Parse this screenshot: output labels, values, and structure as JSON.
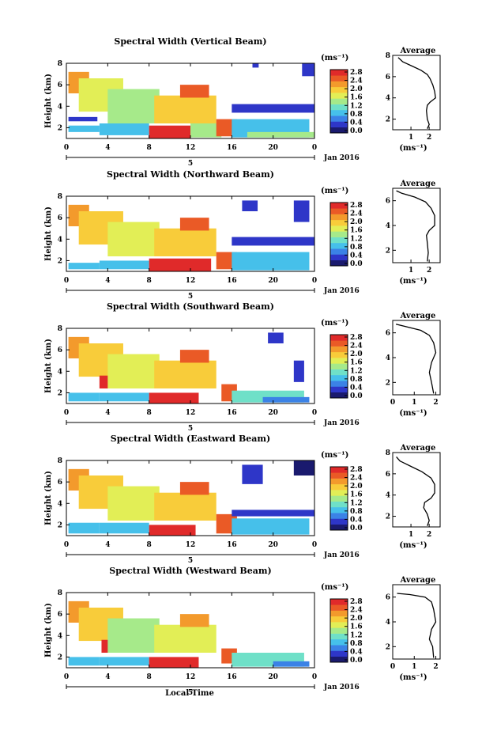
{
  "figure": {
    "xlabel": "Local Time",
    "date_label": "Jan 2016",
    "day_label": "5",
    "ylabel": "Height (km)",
    "unit_label": "(ms⁻¹)",
    "avg_title": "Average",
    "avg_xlabel": "(ms⁻¹)"
  },
  "colormap": [
    "#1a1a6e",
    "#2e36c8",
    "#3b82e6",
    "#46c0ea",
    "#6fe0c8",
    "#a6ea8a",
    "#e2ee56",
    "#f8cc3a",
    "#f39a2c",
    "#ea5a26",
    "#e02a2a"
  ],
  "chart_data": [
    {
      "type": "heatmap",
      "title": "Spectral Width (Vertical Beam)",
      "x_ticks": [
        "0",
        "4",
        "8",
        "12",
        "16",
        "20",
        "0"
      ],
      "y_ticks": [
        "2",
        "4",
        "6",
        "8"
      ],
      "xlim": [
        0,
        24
      ],
      "ylim": [
        1,
        8
      ],
      "colorbar_ticks": [
        "0.0",
        "0.4",
        "0.8",
        "1.2",
        "1.6",
        "2.0",
        "2.4",
        "2.8"
      ],
      "colorbar_range": [
        0,
        2.8
      ],
      "regions": [
        {
          "x": [
            0.2,
            3.2
          ],
          "y": [
            1.6,
            2.2
          ],
          "v": 0.9
        },
        {
          "x": [
            0.2,
            3.0
          ],
          "y": [
            2.6,
            3.0
          ],
          "v": 0.3
        },
        {
          "x": [
            0.2,
            2.2
          ],
          "y": [
            5.2,
            7.2
          ],
          "v": 2.2
        },
        {
          "x": [
            1.2,
            5.5
          ],
          "y": [
            3.5,
            6.6
          ],
          "v": 1.7
        },
        {
          "x": [
            4.0,
            9.0
          ],
          "y": [
            2.4,
            5.6
          ],
          "v": 1.5
        },
        {
          "x": [
            8.5,
            14.5
          ],
          "y": [
            2.4,
            5.0
          ],
          "v": 1.8
        },
        {
          "x": [
            11.0,
            13.8
          ],
          "y": [
            4.8,
            6.0
          ],
          "v": 2.3
        },
        {
          "x": [
            3.2,
            8.0
          ],
          "y": [
            1.3,
            2.4
          ],
          "v": 0.8
        },
        {
          "x": [
            8.0,
            12.0
          ],
          "y": [
            1.0,
            2.2
          ],
          "v": 2.8
        },
        {
          "x": [
            12.0,
            15.0
          ],
          "y": [
            1.1,
            2.4
          ],
          "v": 1.3
        },
        {
          "x": [
            14.5,
            16.5
          ],
          "y": [
            1.2,
            2.8
          ],
          "v": 2.3
        },
        {
          "x": [
            16.0,
            24.0
          ],
          "y": [
            3.4,
            4.2
          ],
          "v": 0.3
        },
        {
          "x": [
            16.0,
            23.5
          ],
          "y": [
            1.1,
            2.8
          ],
          "v": 0.8
        },
        {
          "x": [
            17.5,
            24.0
          ],
          "y": [
            1.1,
            1.6
          ],
          "v": 1.4
        },
        {
          "x": [
            18.0,
            18.6
          ],
          "y": [
            7.6,
            8.0
          ],
          "v": 0.4
        },
        {
          "x": [
            22.8,
            24.0
          ],
          "y": [
            6.8,
            8.0
          ],
          "v": 0.4
        }
      ],
      "average": {
        "x_ticks": [
          "1",
          "2"
        ],
        "xlim": [
          0,
          2.6
        ],
        "y_ticks": [
          "2",
          "4",
          "6",
          "8"
        ],
        "ylim": [
          1,
          8
        ],
        "profile": [
          [
            1.9,
            1.1
          ],
          [
            2.0,
            1.5
          ],
          [
            1.9,
            2.0
          ],
          [
            1.85,
            2.8
          ],
          [
            1.9,
            3.3
          ],
          [
            2.05,
            3.6
          ],
          [
            2.35,
            4.0
          ],
          [
            2.3,
            4.6
          ],
          [
            2.2,
            5.2
          ],
          [
            2.05,
            5.8
          ],
          [
            1.9,
            6.2
          ],
          [
            1.55,
            6.6
          ],
          [
            1.05,
            7.0
          ],
          [
            0.55,
            7.4
          ],
          [
            0.3,
            7.8
          ]
        ]
      }
    },
    {
      "type": "heatmap",
      "title": "Spectral Width (Northward Beam)",
      "x_ticks": [
        "0",
        "4",
        "8",
        "12",
        "16",
        "20",
        "0"
      ],
      "y_ticks": [
        "2",
        "4",
        "6",
        "8"
      ],
      "xlim": [
        0,
        24
      ],
      "ylim": [
        1,
        8
      ],
      "colorbar_ticks": [
        "0.0",
        "0.4",
        "0.8",
        "1.2",
        "1.6",
        "2.0",
        "2.4",
        "2.8"
      ],
      "colorbar_range": [
        0,
        2.8
      ],
      "regions": [
        {
          "x": [
            0.2,
            3.2
          ],
          "y": [
            1.2,
            1.8
          ],
          "v": 0.9
        },
        {
          "x": [
            0.2,
            2.2
          ],
          "y": [
            5.2,
            7.2
          ],
          "v": 2.2
        },
        {
          "x": [
            1.2,
            5.5
          ],
          "y": [
            3.5,
            6.6
          ],
          "v": 1.9
        },
        {
          "x": [
            4.0,
            9.0
          ],
          "y": [
            2.4,
            5.6
          ],
          "v": 1.6
        },
        {
          "x": [
            8.5,
            14.5
          ],
          "y": [
            2.4,
            5.0
          ],
          "v": 1.9
        },
        {
          "x": [
            11.0,
            13.8
          ],
          "y": [
            4.8,
            6.0
          ],
          "v": 2.4
        },
        {
          "x": [
            3.2,
            8.0
          ],
          "y": [
            1.2,
            2.0
          ],
          "v": 0.9
        },
        {
          "x": [
            8.0,
            14.0
          ],
          "y": [
            1.0,
            2.2
          ],
          "v": 2.8
        },
        {
          "x": [
            14.5,
            16.5
          ],
          "y": [
            1.2,
            2.8
          ],
          "v": 2.3
        },
        {
          "x": [
            16.0,
            24.0
          ],
          "y": [
            3.4,
            4.2
          ],
          "v": 0.3
        },
        {
          "x": [
            16.0,
            23.5
          ],
          "y": [
            1.1,
            2.8
          ],
          "v": 0.8
        },
        {
          "x": [
            17.0,
            18.5
          ],
          "y": [
            6.6,
            7.6
          ],
          "v": 0.4
        },
        {
          "x": [
            22.0,
            23.5
          ],
          "y": [
            5.6,
            7.6
          ],
          "v": 0.4
        }
      ],
      "average": {
        "x_ticks": [
          "1",
          "2"
        ],
        "xlim": [
          0,
          2.6
        ],
        "y_ticks": [
          "2",
          "4",
          "6"
        ],
        "ylim": [
          1,
          7
        ],
        "profile": [
          [
            1.9,
            1.1
          ],
          [
            1.95,
            1.8
          ],
          [
            1.9,
            2.6
          ],
          [
            1.85,
            3.2
          ],
          [
            2.0,
            3.6
          ],
          [
            2.3,
            4.0
          ],
          [
            2.3,
            4.8
          ],
          [
            2.1,
            5.4
          ],
          [
            1.8,
            5.9
          ],
          [
            1.2,
            6.3
          ],
          [
            0.5,
            6.6
          ],
          [
            0.2,
            6.8
          ]
        ]
      }
    },
    {
      "type": "heatmap",
      "title": "Spectral Width (Southward Beam)",
      "x_ticks": [
        "0",
        "4",
        "8",
        "12",
        "16",
        "20",
        "0"
      ],
      "y_ticks": [
        "2",
        "4",
        "6",
        "8"
      ],
      "xlim": [
        0,
        24
      ],
      "ylim": [
        1,
        8
      ],
      "colorbar_ticks": [
        "0.0",
        "0.4",
        "0.8",
        "1.2",
        "1.6",
        "2.0",
        "2.4",
        "2.8"
      ],
      "colorbar_range": [
        0,
        2.8
      ],
      "regions": [
        {
          "x": [
            0.2,
            3.2
          ],
          "y": [
            1.2,
            2.0
          ],
          "v": 1.0
        },
        {
          "x": [
            0.2,
            2.2
          ],
          "y": [
            5.2,
            7.2
          ],
          "v": 2.1
        },
        {
          "x": [
            1.2,
            5.5
          ],
          "y": [
            3.5,
            6.6
          ],
          "v": 1.8
        },
        {
          "x": [
            3.2,
            4.6
          ],
          "y": [
            2.4,
            3.6
          ],
          "v": 2.7
        },
        {
          "x": [
            4.0,
            9.0
          ],
          "y": [
            2.4,
            5.6
          ],
          "v": 1.6
        },
        {
          "x": [
            8.5,
            14.5
          ],
          "y": [
            2.4,
            5.0
          ],
          "v": 1.8
        },
        {
          "x": [
            11.0,
            13.8
          ],
          "y": [
            4.8,
            6.0
          ],
          "v": 2.3
        },
        {
          "x": [
            3.2,
            8.0
          ],
          "y": [
            1.2,
            2.0
          ],
          "v": 0.9
        },
        {
          "x": [
            8.0,
            12.8
          ],
          "y": [
            1.0,
            2.0
          ],
          "v": 2.8
        },
        {
          "x": [
            15.0,
            16.5
          ],
          "y": [
            1.2,
            2.8
          ],
          "v": 2.4
        },
        {
          "x": [
            16.0,
            23.0
          ],
          "y": [
            1.1,
            2.2
          ],
          "v": 1.2
        },
        {
          "x": [
            19.0,
            23.5
          ],
          "y": [
            1.1,
            1.6
          ],
          "v": 0.7
        },
        {
          "x": [
            19.5,
            21.0
          ],
          "y": [
            6.6,
            7.6
          ],
          "v": 0.5
        },
        {
          "x": [
            22.0,
            23.0
          ],
          "y": [
            3.0,
            5.0
          ],
          "v": 0.4
        }
      ],
      "average": {
        "x_ticks": [
          "0",
          "1",
          "2"
        ],
        "xlim": [
          0,
          2.2
        ],
        "y_ticks": [
          "2",
          "4",
          "6"
        ],
        "ylim": [
          1,
          7
        ],
        "profile": [
          [
            1.9,
            1.1
          ],
          [
            1.8,
            2.0
          ],
          [
            1.7,
            2.8
          ],
          [
            1.8,
            3.6
          ],
          [
            2.0,
            4.4
          ],
          [
            1.9,
            5.2
          ],
          [
            1.7,
            5.8
          ],
          [
            1.3,
            6.2
          ],
          [
            0.6,
            6.5
          ],
          [
            0.15,
            6.7
          ]
        ]
      }
    },
    {
      "type": "heatmap",
      "title": "Spectral Width (Eastward Beam)",
      "x_ticks": [
        "0",
        "4",
        "8",
        "12",
        "16",
        "20",
        "0"
      ],
      "y_ticks": [
        "2",
        "4",
        "6",
        "8"
      ],
      "xlim": [
        0,
        24
      ],
      "ylim": [
        1,
        8
      ],
      "colorbar_ticks": [
        "0.0",
        "0.4",
        "0.8",
        "1.2",
        "1.6",
        "2.0",
        "2.4",
        "2.8"
      ],
      "colorbar_range": [
        0,
        2.8
      ],
      "regions": [
        {
          "x": [
            0.2,
            3.2
          ],
          "y": [
            1.2,
            2.2
          ],
          "v": 1.0
        },
        {
          "x": [
            0.2,
            2.2
          ],
          "y": [
            5.2,
            7.2
          ],
          "v": 2.2
        },
        {
          "x": [
            1.2,
            5.5
          ],
          "y": [
            3.5,
            6.6
          ],
          "v": 1.9
        },
        {
          "x": [
            4.0,
            9.0
          ],
          "y": [
            2.4,
            5.6
          ],
          "v": 1.6
        },
        {
          "x": [
            8.5,
            14.5
          ],
          "y": [
            2.4,
            5.0
          ],
          "v": 1.9
        },
        {
          "x": [
            11.0,
            13.8
          ],
          "y": [
            4.8,
            6.0
          ],
          "v": 2.4
        },
        {
          "x": [
            3.2,
            8.0
          ],
          "y": [
            1.2,
            2.2
          ],
          "v": 0.9
        },
        {
          "x": [
            8.0,
            12.5
          ],
          "y": [
            1.0,
            2.0
          ],
          "v": 2.8
        },
        {
          "x": [
            14.5,
            16.5
          ],
          "y": [
            1.2,
            3.0
          ],
          "v": 2.4
        },
        {
          "x": [
            16.0,
            24.0
          ],
          "y": [
            2.8,
            3.4
          ],
          "v": 0.3
        },
        {
          "x": [
            16.0,
            23.5
          ],
          "y": [
            1.1,
            2.6
          ],
          "v": 0.8
        },
        {
          "x": [
            17.0,
            19.0
          ],
          "y": [
            5.8,
            7.6
          ],
          "v": 0.4
        },
        {
          "x": [
            22.0,
            24.0
          ],
          "y": [
            6.6,
            8.0
          ],
          "v": 0.2
        }
      ],
      "average": {
        "x_ticks": [
          "1",
          "2"
        ],
        "xlim": [
          0,
          2.6
        ],
        "y_ticks": [
          "2",
          "4",
          "6",
          "8"
        ],
        "ylim": [
          1,
          8
        ],
        "profile": [
          [
            1.9,
            1.1
          ],
          [
            2.0,
            1.6
          ],
          [
            1.9,
            2.2
          ],
          [
            1.7,
            2.8
          ],
          [
            1.75,
            3.3
          ],
          [
            2.1,
            3.7
          ],
          [
            2.3,
            4.2
          ],
          [
            2.3,
            5.0
          ],
          [
            2.1,
            5.6
          ],
          [
            1.6,
            6.2
          ],
          [
            1.0,
            6.7
          ],
          [
            0.4,
            7.2
          ],
          [
            0.2,
            7.6
          ]
        ]
      }
    },
    {
      "type": "heatmap",
      "title": "Spectral Width (Westward Beam)",
      "x_ticks": [
        "0",
        "4",
        "8",
        "12",
        "16",
        "20",
        "0"
      ],
      "y_ticks": [
        "2",
        "4",
        "6",
        "8"
      ],
      "xlim": [
        0,
        24
      ],
      "ylim": [
        1,
        8
      ],
      "colorbar_ticks": [
        "0.0",
        "0.4",
        "0.8",
        "1.2",
        "1.6",
        "2.0",
        "2.4",
        "2.8"
      ],
      "colorbar_range": [
        0,
        2.8
      ],
      "regions": [
        {
          "x": [
            0.2,
            3.2
          ],
          "y": [
            1.2,
            2.0
          ],
          "v": 1.0
        },
        {
          "x": [
            0.2,
            2.2
          ],
          "y": [
            5.2,
            7.2
          ],
          "v": 2.1
        },
        {
          "x": [
            1.2,
            5.5
          ],
          "y": [
            3.5,
            6.6
          ],
          "v": 1.8
        },
        {
          "x": [
            3.4,
            4.6
          ],
          "y": [
            2.4,
            3.6
          ],
          "v": 2.7
        },
        {
          "x": [
            4.0,
            9.0
          ],
          "y": [
            2.4,
            5.6
          ],
          "v": 1.5
        },
        {
          "x": [
            8.5,
            14.5
          ],
          "y": [
            2.4,
            5.0
          ],
          "v": 1.7
        },
        {
          "x": [
            11.0,
            13.8
          ],
          "y": [
            4.8,
            6.0
          ],
          "v": 2.2
        },
        {
          "x": [
            3.2,
            8.0
          ],
          "y": [
            1.2,
            2.0
          ],
          "v": 1.0
        },
        {
          "x": [
            8.0,
            12.8
          ],
          "y": [
            1.0,
            2.0
          ],
          "v": 2.8
        },
        {
          "x": [
            15.0,
            16.5
          ],
          "y": [
            1.4,
            2.8
          ],
          "v": 2.5
        },
        {
          "x": [
            16.0,
            23.0
          ],
          "y": [
            1.1,
            2.4
          ],
          "v": 1.1
        },
        {
          "x": [
            20.0,
            23.5
          ],
          "y": [
            1.1,
            1.6
          ],
          "v": 0.7
        }
      ],
      "average": {
        "x_ticks": [
          "0",
          "1",
          "2"
        ],
        "xlim": [
          0,
          2.2
        ],
        "y_ticks": [
          "2",
          "4",
          "6"
        ],
        "ylim": [
          1,
          7
        ],
        "profile": [
          [
            1.9,
            1.1
          ],
          [
            1.85,
            2.0
          ],
          [
            1.7,
            2.6
          ],
          [
            1.8,
            3.4
          ],
          [
            2.0,
            4.0
          ],
          [
            1.9,
            5.0
          ],
          [
            1.8,
            5.6
          ],
          [
            1.5,
            6.0
          ],
          [
            0.8,
            6.2
          ],
          [
            0.2,
            6.3
          ]
        ]
      }
    }
  ]
}
